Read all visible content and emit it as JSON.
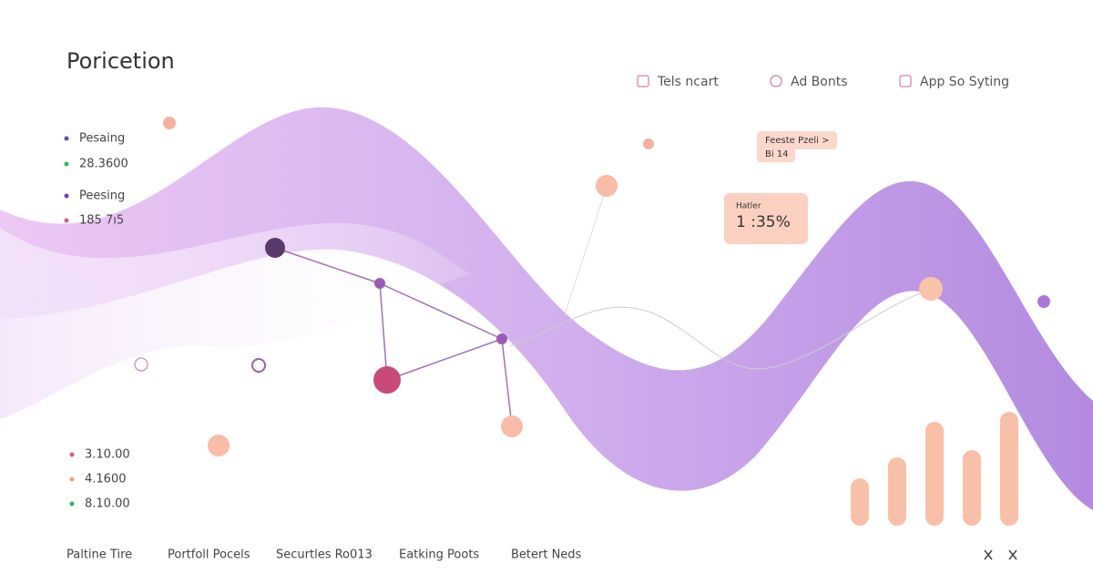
{
  "header": {
    "title": "Poricetion"
  },
  "nav": [
    {
      "label": "Tels ncart"
    },
    {
      "label": "Ad Bonts"
    },
    {
      "label": "App So Syting"
    }
  ],
  "stats_top": [
    {
      "label": "Pesaing",
      "value": "28.3600"
    },
    {
      "label": "Peesing",
      "value": "185 7ı5"
    }
  ],
  "callouts": [
    {
      "label": "Feeste Pzeli >",
      "sub": "Bi 14"
    },
    {
      "label": "Hatler",
      "value": "1 :35%"
    }
  ],
  "stats_bottom": [
    "3.10.00",
    "4.1600",
    "8.10.00"
  ],
  "footer": [
    "Paltine Tire",
    "Portfoll Pocels",
    "Securtles Ro013",
    "Eatking Poots",
    "Betert Neds"
  ]
}
